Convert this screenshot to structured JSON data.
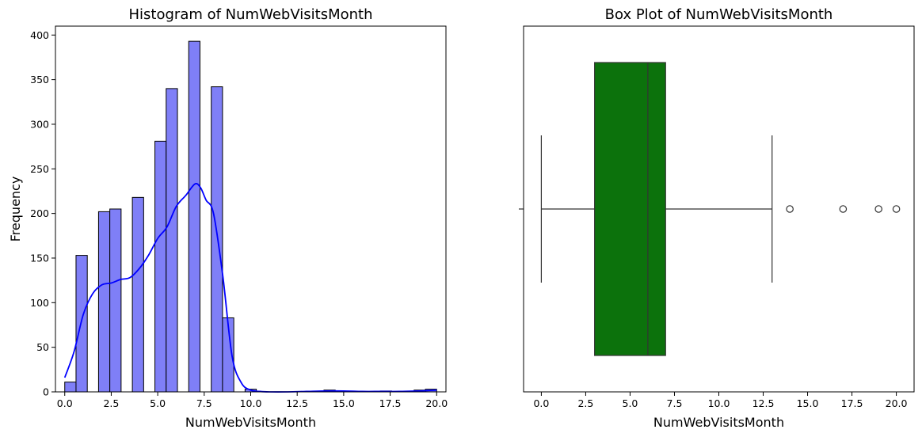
{
  "chart_data": [
    {
      "type": "histogram",
      "title": "Histogram of NumWebVisitsMonth",
      "xlabel": "NumWebVisitsMonth",
      "ylabel": "Frequency",
      "xlim": [
        -0.5,
        20.5
      ],
      "ylim": [
        0,
        410
      ],
      "xticks": [
        0.0,
        2.5,
        5.0,
        7.5,
        10.0,
        12.5,
        15.0,
        17.5,
        20.0
      ],
      "xtick_labels": [
        "0.0",
        "2.5",
        "5.0",
        "7.5",
        "10.0",
        "12.5",
        "15.0",
        "17.5",
        "20.0"
      ],
      "yticks": [
        0,
        50,
        100,
        150,
        200,
        250,
        300,
        350,
        400
      ],
      "ytick_labels": [
        "0",
        "50",
        "100",
        "150",
        "200",
        "250",
        "300",
        "350",
        "400"
      ],
      "bin_width": 0.6061,
      "bins": [
        {
          "x0": 0.0,
          "value": 11
        },
        {
          "x0": 0.6061,
          "value": 153
        },
        {
          "x0": 1.8182,
          "value": 202
        },
        {
          "x0": 2.4242,
          "value": 205
        },
        {
          "x0": 3.6364,
          "value": 218
        },
        {
          "x0": 4.8485,
          "value": 281
        },
        {
          "x0": 5.4545,
          "value": 340
        },
        {
          "x0": 6.6667,
          "value": 393
        },
        {
          "x0": 7.8788,
          "value": 342
        },
        {
          "x0": 8.4848,
          "value": 83
        },
        {
          "x0": 9.697,
          "value": 3
        },
        {
          "x0": 13.9394,
          "value": 2
        },
        {
          "x0": 16.9697,
          "value": 1
        },
        {
          "x0": 18.7879,
          "value": 2
        },
        {
          "x0": 19.3939,
          "value": 3
        }
      ],
      "kde": {
        "x": [
          0.0,
          0.5,
          1.0,
          1.5,
          2.0,
          2.5,
          3.0,
          3.5,
          4.0,
          4.5,
          5.0,
          5.5,
          6.0,
          6.5,
          7.0,
          7.3,
          7.6,
          8.0,
          8.5,
          9.0,
          9.5,
          10.0,
          10.5,
          11.0,
          12.0,
          13.0,
          14.0,
          15.0,
          16.0,
          17.0,
          18.0,
          19.0,
          19.5,
          20.0
        ],
        "y": [
          16,
          45,
          87,
          110,
          120,
          122,
          126,
          128,
          138,
          153,
          172,
          185,
          208,
          220,
          233,
          229,
          215,
          200,
          130,
          40,
          10,
          2,
          0.5,
          0,
          0,
          0.5,
          1,
          1,
          0.5,
          0.5,
          0.5,
          1,
          1.5,
          2
        ]
      },
      "colors": {
        "bar_fill": "#7f7ff7",
        "bar_edge": "#000000",
        "kde_line": "#0000ff"
      }
    },
    {
      "type": "box",
      "title": "Box Plot of NumWebVisitsMonth",
      "xlabel": "NumWebVisitsMonth",
      "xlim": [
        -1,
        21
      ],
      "xticks": [
        0.0,
        2.5,
        5.0,
        7.5,
        10.0,
        12.5,
        15.0,
        17.5,
        20.0
      ],
      "xtick_labels": [
        "0.0",
        "2.5",
        "5.0",
        "7.5",
        "10.0",
        "12.5",
        "15.0",
        "17.5",
        "20.0"
      ],
      "whisker_low": 0,
      "q1": 3,
      "median": 6,
      "q3": 7,
      "whisker_high": 13,
      "outliers": [
        14,
        17,
        19,
        20
      ],
      "colors": {
        "box_fill": "#0c720c",
        "line": "#333333"
      }
    }
  ]
}
